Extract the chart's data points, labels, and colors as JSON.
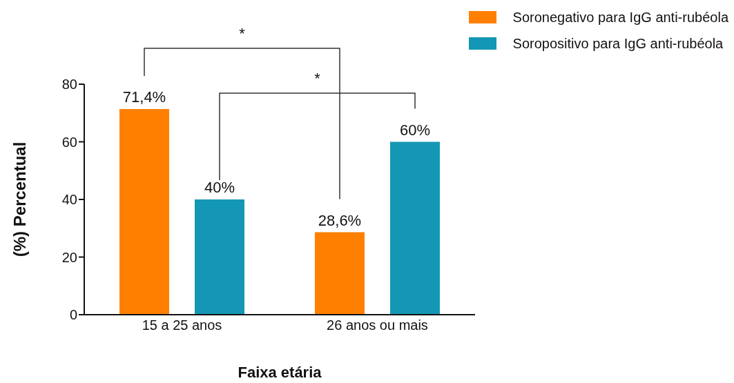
{
  "chart_data": {
    "type": "bar",
    "xlabel": "Faixa etária",
    "ylabel": "(%) Percentual",
    "categories": [
      "15 a 25 anos",
      "26 anos ou mais"
    ],
    "series": [
      {
        "name": "Soronegativo para IgG anti-rubéola",
        "color": "#ff8000",
        "values": [
          71.4,
          28.6
        ],
        "value_labels": [
          "71,4%",
          "28,6%"
        ]
      },
      {
        "name": "Soropositivo para IgG anti-rubéola",
        "color": "#1497b4",
        "values": [
          40,
          60
        ],
        "value_labels": [
          "40%",
          "60%"
        ]
      }
    ],
    "ylim": [
      0,
      80
    ],
    "yticks": [
      0,
      20,
      40,
      60,
      80
    ],
    "grid": false,
    "legend": "top right",
    "annotations": [
      "*",
      "*"
    ]
  }
}
